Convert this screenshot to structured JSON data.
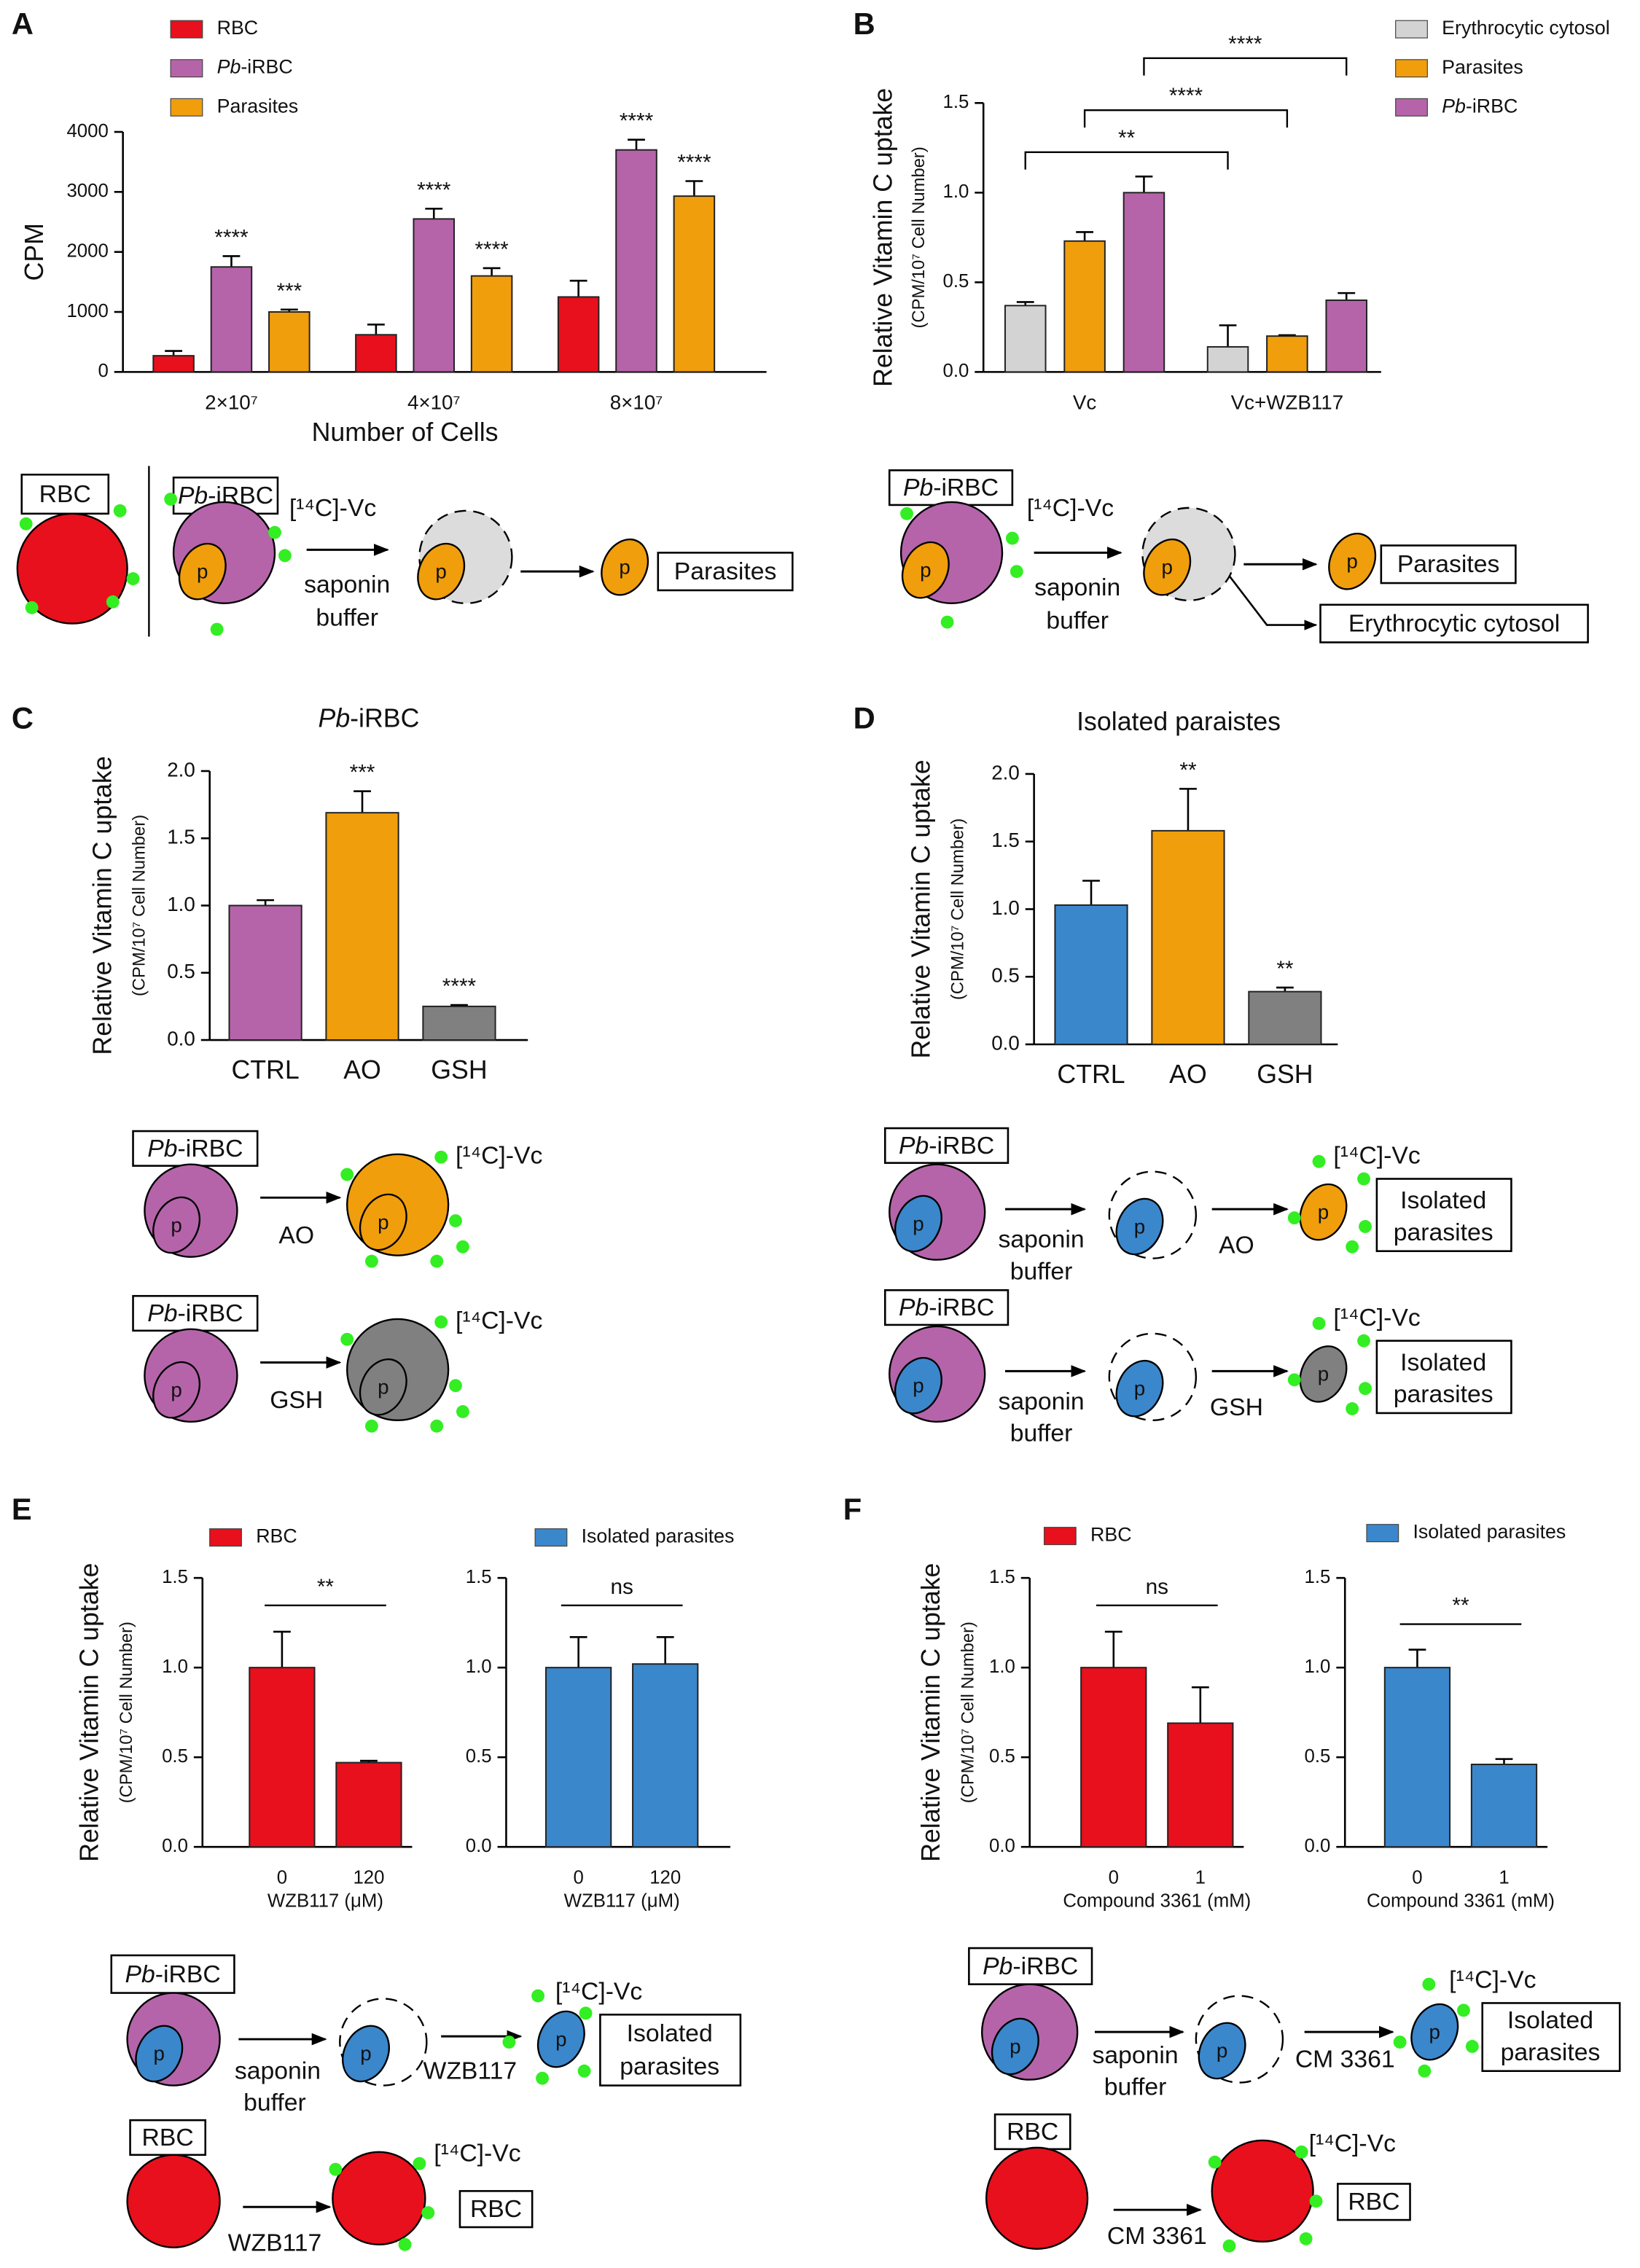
{
  "chart_data": [
    {
      "type": "bar",
      "panel": "A",
      "ylabel": "CPM",
      "xlabel": "Number of Cells",
      "categories": [
        "2×10⁷",
        "4×10⁷",
        "8×10⁷"
      ],
      "ylim": [
        0,
        4000
      ],
      "yticks": [
        0,
        1000,
        2000,
        3000,
        4000
      ],
      "series": [
        {
          "name": "RBC",
          "color": "#e8101c",
          "values": [
            270,
            620,
            1250
          ],
          "errors": [
            80,
            170,
            270
          ]
        },
        {
          "name": "Pb-iRBC",
          "color": "#b564aa",
          "values": [
            1750,
            2550,
            3700
          ],
          "errors": [
            180,
            170,
            170
          ],
          "significance": [
            "****",
            "****",
            "****"
          ]
        },
        {
          "name": "Parasites",
          "color": "#f09e0c",
          "values": [
            1000,
            1600,
            2930
          ],
          "errors": [
            40,
            130,
            250
          ],
          "significance": [
            "***",
            "****",
            "****"
          ]
        }
      ]
    },
    {
      "type": "bar",
      "panel": "B",
      "ylabel": "Relative Vitamin C uptake",
      "ylabel_sub": "(CPM/10⁷ Cell Number)",
      "categories": [
        "Vc",
        "Vc+WZB117"
      ],
      "ylim": [
        0,
        1.5
      ],
      "yticks": [
        {
          "value": 0,
          "label": "0.0"
        },
        0.5,
        {
          "value": 1,
          "label": "1.0"
        },
        1.5
      ],
      "series": [
        {
          "name": "Erythrocytic cytosol",
          "color": "#d3d3d3",
          "values": [
            0.37,
            0.14
          ],
          "errors": [
            0.02,
            0.12
          ]
        },
        {
          "name": "Parasites",
          "color": "#f09e0c",
          "values": [
            0.73,
            0.2
          ],
          "errors": [
            0.05,
            0.005
          ]
        },
        {
          "name": "Pb-iRBC",
          "color": "#b564aa",
          "values": [
            1.0,
            0.4
          ],
          "errors": [
            0.09,
            0.04
          ]
        }
      ],
      "brackets": [
        "**",
        "****",
        "****"
      ]
    },
    {
      "type": "bar",
      "panel": "C",
      "title": "Pb-iRBC",
      "ylabel": "Relative Vitamin C uptake",
      "ylabel_sub": "(CPM/10⁷ Cell Number)",
      "categories": [
        "CTRL",
        "AO",
        "GSH"
      ],
      "values": [
        1.0,
        1.69,
        0.25
      ],
      "errors": [
        0.04,
        0.16,
        0.01
      ],
      "colors": [
        "#b564aa",
        "#f09e0c",
        "#808080"
      ],
      "significance": [
        null,
        "***",
        "****"
      ],
      "ylim": [
        0,
        2
      ],
      "yticks": [
        {
          "value": 0,
          "label": "0.0"
        },
        0.5,
        {
          "value": 1,
          "label": "1.0"
        },
        1.5,
        {
          "value": 2,
          "label": "2.0"
        }
      ]
    },
    {
      "type": "bar",
      "panel": "D",
      "title": "Isolated paraistes",
      "ylabel": "Relative Vitamin C uptake",
      "ylabel_sub": "(CPM/10⁷ Cell Number)",
      "categories": [
        "CTRL",
        "AO",
        "GSH"
      ],
      "values": [
        1.03,
        1.58,
        0.39
      ],
      "errors": [
        0.18,
        0.31,
        0.03
      ],
      "colors": [
        "#3a87cc",
        "#f09e0c",
        "#808080"
      ],
      "significance": [
        null,
        "**",
        "**"
      ],
      "ylim": [
        0,
        2
      ],
      "yticks": [
        {
          "value": 0,
          "label": "0.0"
        },
        0.5,
        {
          "value": 1,
          "label": "1.0"
        },
        1.5,
        {
          "value": 2,
          "label": "2.0"
        }
      ]
    },
    {
      "type": "bar",
      "panel": "E",
      "ylabel": "Relative Vitamin C uptake",
      "ylabel_sub": "(CPM/10⁷ Cell Number)",
      "xlabel": "WZB117 (μM)",
      "categories": [
        "0",
        "120"
      ],
      "ylim": [
        0,
        1.5
      ],
      "yticks": [
        {
          "value": 0,
          "label": "0.0"
        },
        0.5,
        {
          "value": 1,
          "label": "1.0"
        },
        1.5
      ],
      "series": [
        {
          "name": "RBC",
          "color": "#e8101c",
          "values": [
            1.0,
            0.47
          ],
          "errors": [
            0.2,
            0.01
          ]
        }
      ],
      "bracket": "**"
    },
    {
      "type": "bar",
      "xlabel": "WZB117 (μM)",
      "categories": [
        "0",
        "120"
      ],
      "ylim": [
        0,
        1.5
      ],
      "yticks": [
        {
          "value": 0,
          "label": "0.0"
        },
        0.5,
        {
          "value": 1,
          "label": "1.0"
        },
        1.5
      ],
      "series": [
        {
          "name": "Isolated parasites",
          "color": "#3a87cc",
          "values": [
            1.0,
            1.02
          ],
          "errors": [
            0.17,
            0.15
          ]
        }
      ],
      "bracket": "ns"
    },
    {
      "type": "bar",
      "panel": "F",
      "ylabel": "Relative Vitamin C uptake",
      "ylabel_sub": "(CPM/10⁷ Cell Number)",
      "xlabel": "Compound 3361 (mM)",
      "categories": [
        "0",
        "1"
      ],
      "ylim": [
        0,
        1.5
      ],
      "yticks": [
        {
          "value": 0,
          "label": "0.0"
        },
        0.5,
        {
          "value": 1,
          "label": "1.0"
        },
        1.5
      ],
      "series": [
        {
          "name": "RBC",
          "color": "#e8101c",
          "values": [
            1.0,
            0.69
          ],
          "errors": [
            0.2,
            0.2
          ]
        }
      ],
      "bracket": "ns"
    },
    {
      "type": "bar",
      "xlabel": "Compound 3361 (mM)",
      "categories": [
        "0",
        "1"
      ],
      "ylim": [
        0,
        1.5
      ],
      "yticks": [
        {
          "value": 0,
          "label": "0.0"
        },
        0.5,
        {
          "value": 1,
          "label": "1.0"
        },
        1.5
      ],
      "series": [
        {
          "name": "Isolated parasites",
          "color": "#3a87cc",
          "values": [
            1.0,
            0.46
          ],
          "errors": [
            0.1,
            0.03
          ]
        }
      ],
      "bracket": "**"
    }
  ],
  "diagrams": {
    "A": [
      "RBC",
      "Pb-iRBC",
      "[¹⁴C]-Vc",
      "saponin",
      "buffer",
      "p",
      "p",
      "p",
      "Parasites"
    ],
    "B": [
      "Pb-iRBC",
      "[¹⁴C]-Vc",
      "saponin",
      "buffer",
      "p",
      "p",
      "p",
      "Parasites",
      "Erythrocytic cytosol"
    ],
    "C": [
      "Pb-iRBC",
      "p",
      "AO",
      "p",
      "[¹⁴C]-Vc",
      "Pb-iRBC",
      "p",
      "GSH",
      "p",
      "[¹⁴C]-Vc"
    ],
    "D": [
      "Pb-iRBC",
      "p",
      "saponin",
      "buffer",
      "p",
      "AO",
      "p",
      "[¹⁴C]-Vc",
      "Isolated",
      "parasites",
      "Pb-iRBC",
      "p",
      "saponin",
      "buffer",
      "p",
      "GSH",
      "p",
      "[¹⁴C]-Vc",
      "Isolated",
      "parasites"
    ],
    "E": [
      "Pb-iRBC",
      "p",
      "saponin",
      "buffer",
      "p",
      "WZB117",
      "p",
      "[¹⁴C]-Vc",
      "Isolated",
      "parasites",
      "RBC",
      "WZB117",
      "[¹⁴C]-Vc",
      "RBC"
    ],
    "F": [
      "Pb-iRBC",
      "p",
      "saponin",
      "buffer",
      "p",
      "CM 3361",
      "p",
      "[¹⁴C]-Vc",
      "Isolated",
      "parasites",
      "RBC",
      "CM 3361",
      "[¹⁴C]-Vc",
      "RBC"
    ]
  }
}
